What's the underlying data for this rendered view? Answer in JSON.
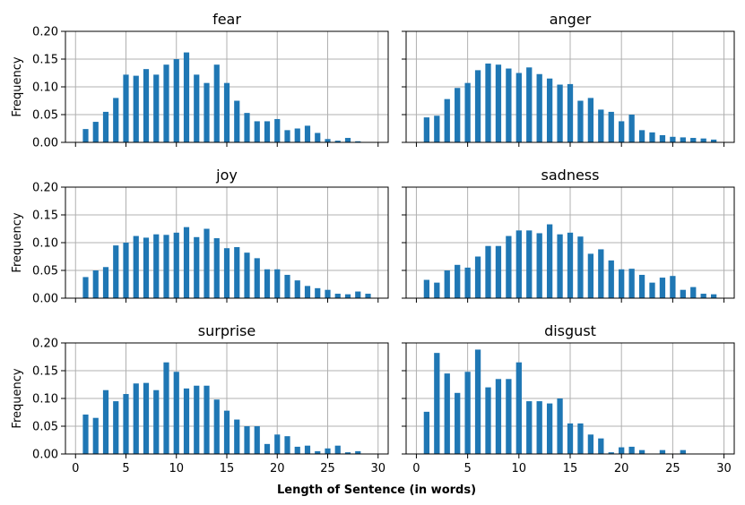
{
  "figure": {
    "xlabel": "Length of Sentence (in words)",
    "ylabel": "Frequency"
  },
  "chart_data": [
    {
      "type": "bar",
      "title": "fear",
      "x": [
        1,
        2,
        3,
        4,
        5,
        6,
        7,
        8,
        9,
        10,
        11,
        12,
        13,
        14,
        15,
        16,
        17,
        18,
        19,
        20,
        21,
        22,
        23,
        24,
        25,
        26,
        27,
        28,
        29
      ],
      "values": [
        0.024,
        0.037,
        0.055,
        0.08,
        0.122,
        0.12,
        0.132,
        0.122,
        0.14,
        0.15,
        0.162,
        0.122,
        0.107,
        0.14,
        0.107,
        0.075,
        0.053,
        0.038,
        0.038,
        0.042,
        0.022,
        0.025,
        0.03,
        0.017,
        0.006,
        0.003,
        0.008,
        0.002,
        0.0
      ],
      "xlim": [
        -1,
        31
      ],
      "ylim": [
        0,
        0.2
      ],
      "xticks": [
        0,
        5,
        10,
        15,
        20,
        25,
        30
      ],
      "yticks": [
        0.0,
        0.05,
        0.1,
        0.15,
        0.2
      ],
      "color": "#1f77b4",
      "grid": true
    },
    {
      "type": "bar",
      "title": "anger",
      "x": [
        1,
        2,
        3,
        4,
        5,
        6,
        7,
        8,
        9,
        10,
        11,
        12,
        13,
        14,
        15,
        16,
        17,
        18,
        19,
        20,
        21,
        22,
        23,
        24,
        25,
        26,
        27,
        28,
        29
      ],
      "values": [
        0.045,
        0.048,
        0.078,
        0.098,
        0.107,
        0.13,
        0.142,
        0.14,
        0.133,
        0.125,
        0.135,
        0.123,
        0.115,
        0.104,
        0.105,
        0.075,
        0.08,
        0.059,
        0.055,
        0.038,
        0.05,
        0.022,
        0.018,
        0.013,
        0.01,
        0.009,
        0.008,
        0.007,
        0.005
      ],
      "xlim": [
        -1,
        31
      ],
      "ylim": [
        0,
        0.2
      ],
      "xticks": [
        0,
        5,
        10,
        15,
        20,
        25,
        30
      ],
      "yticks": [
        0.0,
        0.05,
        0.1,
        0.15,
        0.2
      ],
      "color": "#1f77b4",
      "grid": true
    },
    {
      "type": "bar",
      "title": "joy",
      "x": [
        1,
        2,
        3,
        4,
        5,
        6,
        7,
        8,
        9,
        10,
        11,
        12,
        13,
        14,
        15,
        16,
        17,
        18,
        19,
        20,
        21,
        22,
        23,
        24,
        25,
        26,
        27,
        28,
        29
      ],
      "values": [
        0.038,
        0.05,
        0.056,
        0.095,
        0.1,
        0.112,
        0.109,
        0.115,
        0.114,
        0.118,
        0.128,
        0.11,
        0.125,
        0.108,
        0.09,
        0.092,
        0.082,
        0.072,
        0.052,
        0.052,
        0.042,
        0.032,
        0.022,
        0.018,
        0.015,
        0.008,
        0.007,
        0.012,
        0.008
      ],
      "xlim": [
        -1,
        31
      ],
      "ylim": [
        0,
        0.2
      ],
      "xticks": [
        0,
        5,
        10,
        15,
        20,
        25,
        30
      ],
      "yticks": [
        0.0,
        0.05,
        0.1,
        0.15,
        0.2
      ],
      "color": "#1f77b4",
      "grid": true
    },
    {
      "type": "bar",
      "title": "sadness",
      "x": [
        1,
        2,
        3,
        4,
        5,
        6,
        7,
        8,
        9,
        10,
        11,
        12,
        13,
        14,
        15,
        16,
        17,
        18,
        19,
        20,
        21,
        22,
        23,
        24,
        25,
        26,
        27,
        28,
        29
      ],
      "values": [
        0.033,
        0.028,
        0.05,
        0.06,
        0.055,
        0.075,
        0.094,
        0.094,
        0.112,
        0.122,
        0.122,
        0.117,
        0.133,
        0.115,
        0.118,
        0.111,
        0.08,
        0.088,
        0.068,
        0.052,
        0.053,
        0.042,
        0.028,
        0.037,
        0.04,
        0.015,
        0.02,
        0.008,
        0.007
      ],
      "xlim": [
        -1,
        31
      ],
      "ylim": [
        0,
        0.2
      ],
      "xticks": [
        0,
        5,
        10,
        15,
        20,
        25,
        30
      ],
      "yticks": [
        0.0,
        0.05,
        0.1,
        0.15,
        0.2
      ],
      "color": "#1f77b4",
      "grid": true
    },
    {
      "type": "bar",
      "title": "surprise",
      "x": [
        1,
        2,
        3,
        4,
        5,
        6,
        7,
        8,
        9,
        10,
        11,
        12,
        13,
        14,
        15,
        16,
        17,
        18,
        19,
        20,
        21,
        22,
        23,
        24,
        25,
        26,
        27,
        28,
        29
      ],
      "values": [
        0.071,
        0.065,
        0.115,
        0.095,
        0.108,
        0.127,
        0.128,
        0.115,
        0.165,
        0.148,
        0.118,
        0.123,
        0.123,
        0.098,
        0.078,
        0.062,
        0.05,
        0.05,
        0.018,
        0.035,
        0.032,
        0.013,
        0.015,
        0.005,
        0.01,
        0.015,
        0.003,
        0.005,
        0.0
      ],
      "xlim": [
        -1,
        31
      ],
      "ylim": [
        0,
        0.2
      ],
      "xticks": [
        0,
        5,
        10,
        15,
        20,
        25,
        30
      ],
      "yticks": [
        0.0,
        0.05,
        0.1,
        0.15,
        0.2
      ],
      "color": "#1f77b4",
      "grid": true
    },
    {
      "type": "bar",
      "title": "disgust",
      "x": [
        1,
        2,
        3,
        4,
        5,
        6,
        7,
        8,
        9,
        10,
        11,
        12,
        13,
        14,
        15,
        16,
        17,
        18,
        19,
        20,
        21,
        22,
        23,
        24,
        25,
        26,
        27,
        28,
        29
      ],
      "values": [
        0.076,
        0.182,
        0.145,
        0.11,
        0.148,
        0.188,
        0.12,
        0.135,
        0.135,
        0.165,
        0.095,
        0.095,
        0.091,
        0.1,
        0.055,
        0.055,
        0.035,
        0.028,
        0.003,
        0.012,
        0.013,
        0.007,
        0.0,
        0.007,
        0.0,
        0.007,
        0.0,
        0.0,
        0.0
      ],
      "xlim": [
        -1,
        31
      ],
      "ylim": [
        0,
        0.2
      ],
      "xticks": [
        0,
        5,
        10,
        15,
        20,
        25,
        30
      ],
      "yticks": [
        0.0,
        0.05,
        0.1,
        0.15,
        0.2
      ],
      "color": "#1f77b4",
      "grid": true
    }
  ]
}
